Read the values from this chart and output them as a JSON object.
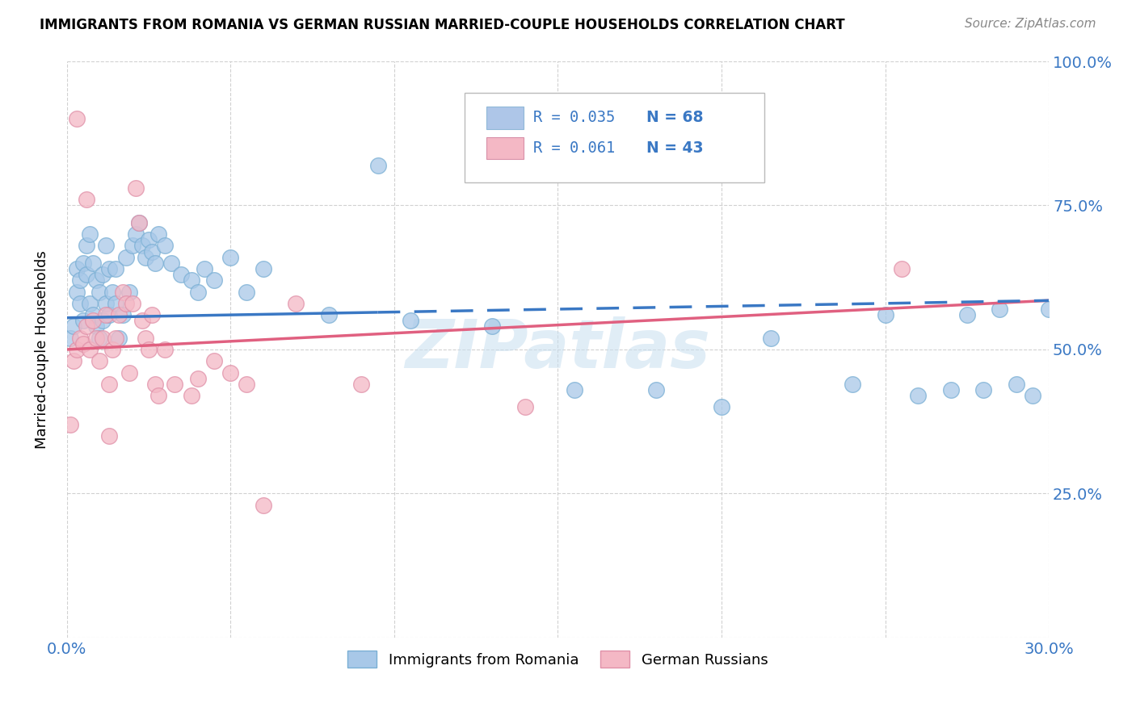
{
  "title": "IMMIGRANTS FROM ROMANIA VS GERMAN RUSSIAN MARRIED-COUPLE HOUSEHOLDS CORRELATION CHART",
  "source": "Source: ZipAtlas.com",
  "ylabel": "Married-couple Households",
  "xlim": [
    0.0,
    0.3
  ],
  "ylim": [
    0.0,
    1.0
  ],
  "legend_entries": [
    {
      "label_r": "R = 0.035",
      "label_n": "N = 68",
      "color": "#aec6e8"
    },
    {
      "label_r": "R = 0.061",
      "label_n": "N = 43",
      "color": "#f4b8c5"
    }
  ],
  "series1_color": "#a8c8e8",
  "series2_color": "#f4b8c5",
  "series1_edge": "#7aafd4",
  "series2_edge": "#e090a8",
  "trendline1_color": "#3a78c4",
  "trendline2_color": "#e06080",
  "watermark": "ZIPatlas",
  "watermark_color": "#c8dff0",
  "trendline1_y0": 0.555,
  "trendline1_y1": 0.585,
  "trendline2_y0": 0.5,
  "trendline2_y1": 0.585,
  "series1_x": [
    0.001,
    0.002,
    0.003,
    0.003,
    0.004,
    0.004,
    0.005,
    0.005,
    0.006,
    0.006,
    0.007,
    0.007,
    0.008,
    0.008,
    0.009,
    0.009,
    0.01,
    0.01,
    0.011,
    0.011,
    0.012,
    0.012,
    0.013,
    0.013,
    0.014,
    0.015,
    0.015,
    0.016,
    0.017,
    0.018,
    0.019,
    0.02,
    0.021,
    0.022,
    0.023,
    0.024,
    0.025,
    0.026,
    0.027,
    0.028,
    0.03,
    0.032,
    0.035,
    0.038,
    0.04,
    0.042,
    0.045,
    0.05,
    0.055,
    0.06,
    0.08,
    0.095,
    0.105,
    0.13,
    0.155,
    0.18,
    0.2,
    0.215,
    0.24,
    0.25,
    0.26,
    0.27,
    0.275,
    0.28,
    0.285,
    0.29,
    0.295,
    0.3
  ],
  "series1_y": [
    0.52,
    0.54,
    0.6,
    0.64,
    0.58,
    0.62,
    0.55,
    0.65,
    0.63,
    0.68,
    0.58,
    0.7,
    0.56,
    0.65,
    0.54,
    0.62,
    0.52,
    0.6,
    0.55,
    0.63,
    0.58,
    0.68,
    0.56,
    0.64,
    0.6,
    0.58,
    0.64,
    0.52,
    0.56,
    0.66,
    0.6,
    0.68,
    0.7,
    0.72,
    0.68,
    0.66,
    0.69,
    0.67,
    0.65,
    0.7,
    0.68,
    0.65,
    0.63,
    0.62,
    0.6,
    0.64,
    0.62,
    0.66,
    0.6,
    0.64,
    0.56,
    0.82,
    0.55,
    0.54,
    0.43,
    0.43,
    0.4,
    0.52,
    0.44,
    0.56,
    0.42,
    0.43,
    0.56,
    0.43,
    0.57,
    0.44,
    0.42,
    0.57
  ],
  "series2_x": [
    0.001,
    0.002,
    0.003,
    0.003,
    0.004,
    0.005,
    0.006,
    0.006,
    0.007,
    0.008,
    0.009,
    0.01,
    0.011,
    0.012,
    0.013,
    0.013,
    0.014,
    0.015,
    0.016,
    0.017,
    0.018,
    0.019,
    0.02,
    0.021,
    0.022,
    0.023,
    0.024,
    0.025,
    0.026,
    0.027,
    0.028,
    0.03,
    0.033,
    0.038,
    0.04,
    0.045,
    0.05,
    0.055,
    0.06,
    0.07,
    0.09,
    0.14,
    0.255
  ],
  "series2_y": [
    0.37,
    0.48,
    0.5,
    0.9,
    0.52,
    0.51,
    0.54,
    0.76,
    0.5,
    0.55,
    0.52,
    0.48,
    0.52,
    0.56,
    0.35,
    0.44,
    0.5,
    0.52,
    0.56,
    0.6,
    0.58,
    0.46,
    0.58,
    0.78,
    0.72,
    0.55,
    0.52,
    0.5,
    0.56,
    0.44,
    0.42,
    0.5,
    0.44,
    0.42,
    0.45,
    0.48,
    0.46,
    0.44,
    0.23,
    0.58,
    0.44,
    0.4,
    0.64
  ]
}
